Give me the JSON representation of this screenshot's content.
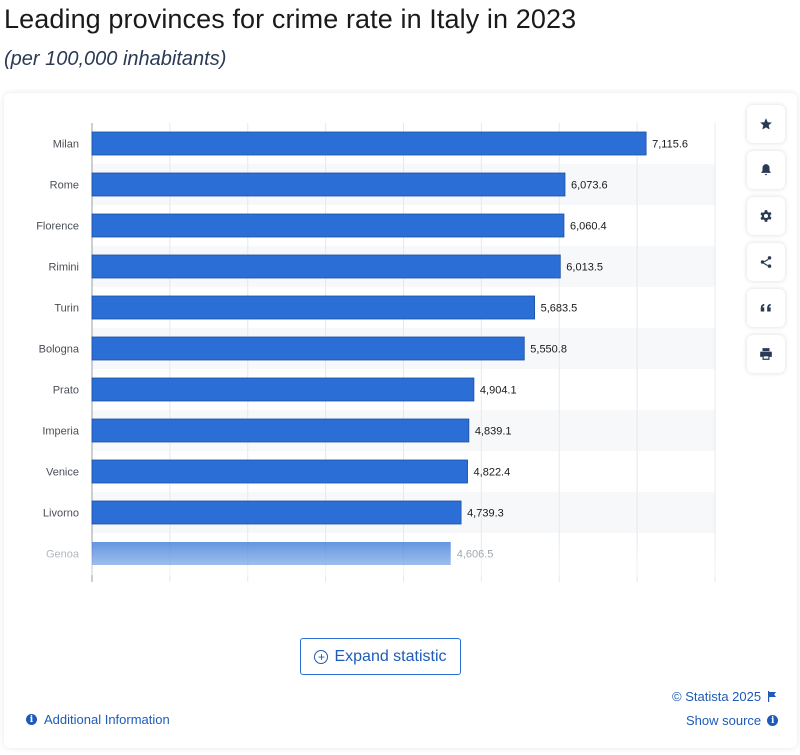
{
  "title": "Leading provinces for crime rate in Italy in 2023",
  "subtitle": "(per 100,000 inhabitants)",
  "chart_data": {
    "type": "bar",
    "orientation": "horizontal",
    "title": "Leading provinces for crime rate in Italy in 2023",
    "subtitle": "(per 100,000 inhabitants)",
    "categories": [
      "Milan",
      "Rome",
      "Florence",
      "Rimini",
      "Turin",
      "Bologna",
      "Prato",
      "Imperia",
      "Venice",
      "Livorno",
      "Genoa"
    ],
    "values": [
      7115.6,
      6073.6,
      6060.4,
      6013.5,
      5683.5,
      5550.8,
      4904.1,
      4839.1,
      4822.4,
      4739.3,
      4606.5
    ],
    "value_labels": [
      "7,115.6",
      "6,073.6",
      "6,060.4",
      "6,013.5",
      "5,683.5",
      "5,550.8",
      "4,904.1",
      "4,839.1",
      "4,822.4",
      "4,739.3",
      "4,606.5"
    ],
    "xlim": [
      0,
      8000
    ],
    "xlabel": "",
    "ylabel": "",
    "grid": true,
    "bar_color": "#2b6fd6",
    "legend": "none"
  },
  "toolbar": {
    "favorite_icon": "star-icon",
    "notification_icon": "bell-icon",
    "settings_icon": "gear-icon",
    "share_icon": "share-icon",
    "cite_icon": "quote-icon",
    "print_icon": "printer-icon"
  },
  "expand_label": "Expand statistic",
  "copyright": "© Statista 2025",
  "show_source": "Show source",
  "additional_info": "Additional Information",
  "colors": {
    "accent": "#1e5bb8",
    "bar": "#2b6fd6",
    "title": "#1a1a1a",
    "subtitle": "#2a3a55"
  }
}
